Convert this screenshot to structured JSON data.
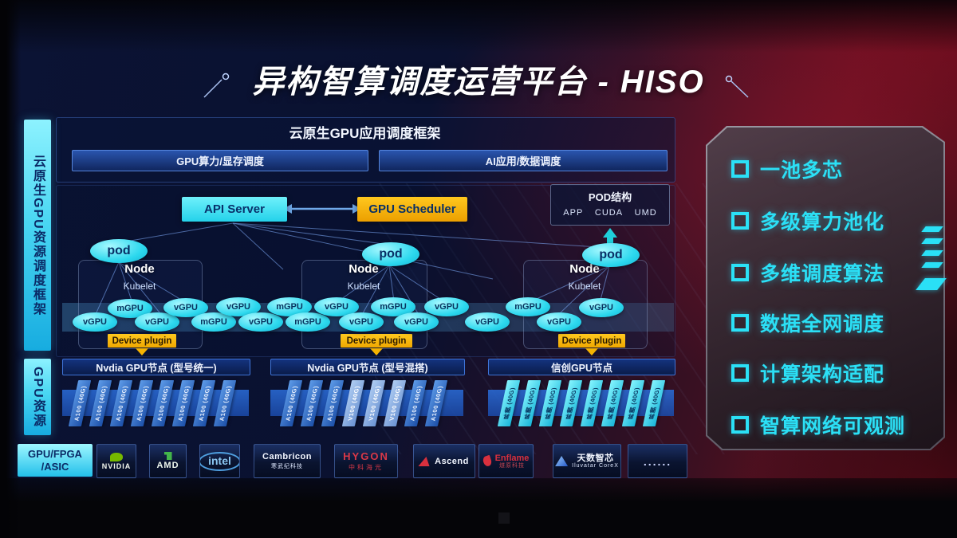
{
  "title": {
    "text": "异构智算调度运营平台 - HISO"
  },
  "sidebar": {
    "cloud_native_label": "云原生GPU资源调度框架",
    "gpu_resource_label": "GPU资源",
    "hw_label_line1": "GPU/FPGA",
    "hw_label_line2": "/ASIC"
  },
  "app_framework": {
    "title": "云原生GPU应用调度框架",
    "bars": [
      "GPU算力/显存调度",
      "AI应用/数据调度"
    ]
  },
  "scheduler": {
    "api_server": "API Server",
    "gpu_scheduler": "GPU Scheduler",
    "pod_label": "pod",
    "pod_box": {
      "title": "POD结构",
      "items": [
        "APP",
        "CUDA",
        "UMD"
      ]
    },
    "nodes": [
      {
        "name": "Node",
        "agent": "Kubelet"
      },
      {
        "name": "Node",
        "agent": "Kubelet"
      },
      {
        "name": "Node",
        "agent": "Kubelet"
      }
    ],
    "device_plugin": "Device plugin",
    "gpu_ellipses": [
      "vGPU",
      "mGPU",
      "vGPU",
      "vGPU",
      "mGPU",
      "vGPU",
      "vGPU",
      "mGPU",
      "mGPU",
      "vGPU",
      "vGPU",
      "mGPU",
      "vGPU",
      "vGPU",
      "vGPU",
      "mGPU",
      "vGPU",
      "vGPU"
    ]
  },
  "gpu_nodes": {
    "groups": [
      {
        "title": "Nvdia GPU节点 (型号统一)",
        "cards": [
          {
            "label": "A100 (40G)",
            "variant": "blue"
          },
          {
            "label": "A100 (40G)",
            "variant": "blue"
          },
          {
            "label": "A100 (40G)",
            "variant": "blue"
          },
          {
            "label": "A100 (40G)",
            "variant": "blue"
          },
          {
            "label": "A100 (40G)",
            "variant": "blue"
          },
          {
            "label": "A100 (40G)",
            "variant": "blue"
          },
          {
            "label": "A100 (40G)",
            "variant": "blue"
          },
          {
            "label": "A100 (40G)",
            "variant": "blue"
          }
        ]
      },
      {
        "title": "Nvdia GPU节点 (型号混搭)",
        "cards": [
          {
            "label": "A100 (40G)",
            "variant": "blue"
          },
          {
            "label": "A100 (40G)",
            "variant": "blue"
          },
          {
            "label": "A100 (40G)",
            "variant": "blue"
          },
          {
            "label": "V100 (40G)",
            "variant": "light"
          },
          {
            "label": "V100 (40G)",
            "variant": "light"
          },
          {
            "label": "V100 (40G)",
            "variant": "light"
          },
          {
            "label": "A100 (40G)",
            "variant": "blue"
          },
          {
            "label": "A100 (40G)",
            "variant": "blue"
          }
        ]
      },
      {
        "title": "信创GPU节点",
        "cards": [
          {
            "label": "昇腾 (40G)",
            "variant": "cyan"
          },
          {
            "label": "昇腾 (40G)",
            "variant": "cyan"
          },
          {
            "label": "昇腾 (40G)",
            "variant": "cyan"
          },
          {
            "label": "昇腾 (40G)",
            "variant": "cyan"
          },
          {
            "label": "昇腾 (40G)",
            "variant": "cyan"
          },
          {
            "label": "昇腾 (40G)",
            "variant": "cyan"
          },
          {
            "label": "昇腾 (40G)",
            "variant": "cyan"
          },
          {
            "label": "昇腾 (40G)",
            "variant": "cyan"
          }
        ]
      }
    ]
  },
  "vendors": [
    {
      "icon": "nvidia-logo",
      "text": "NVIDIA"
    },
    {
      "icon": "amd-logo",
      "text": "AMD"
    },
    {
      "icon": "intel-logo",
      "text": "intel"
    },
    {
      "icon": "cambricon-logo",
      "text": "Cambricon",
      "sub": "寒武纪科技"
    },
    {
      "icon": "hygon-logo",
      "text": "HYGON",
      "sub": "中科海光"
    },
    {
      "icon": "ascend-logo",
      "text": "Ascend"
    },
    {
      "icon": "enflame-logo",
      "text": "Enflame",
      "sub": "燧原科技"
    },
    {
      "icon": "iluvatar-logo",
      "text": "天数智芯",
      "sub": "Iluvatar CoreX"
    },
    {
      "icon": "ellipsis",
      "text": "......"
    }
  ],
  "features": [
    "一池多芯",
    "多级算力池化",
    "多维调度算法",
    "数据全网调度",
    "计算架构适配",
    "智算网络可观测"
  ],
  "colors": {
    "cyan": "#3AE4F4",
    "yellow": "#F6B40E",
    "card_blue": "#2B62C4",
    "feature_cyan": "#2BE0F6",
    "red_accent": "#C22B3C"
  }
}
